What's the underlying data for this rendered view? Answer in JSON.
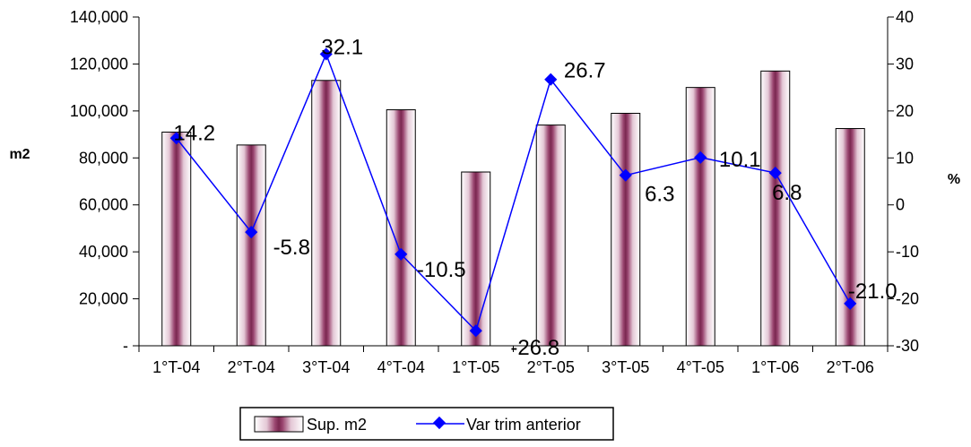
{
  "chart_data": {
    "type": "bar",
    "categories": [
      "1°T-04",
      "2°T-04",
      "3°T-04",
      "4°T-04",
      "1°T-05",
      "2°T-05",
      "3°T-05",
      "4°T-05",
      "1°T-06",
      "2°T-06"
    ],
    "series": [
      {
        "name": "Sup. m2",
        "type": "bar",
        "axis": "left",
        "values": [
          91000,
          85500,
          113000,
          100500,
          74000,
          94000,
          99000,
          110000,
          117000,
          92500
        ]
      },
      {
        "name": "Var trim anterior",
        "type": "line",
        "axis": "right",
        "values": [
          14.2,
          -5.8,
          32.1,
          -10.5,
          -26.8,
          26.7,
          6.3,
          10.1,
          6.8,
          -21.0
        ],
        "labels": [
          "14.2",
          "-5.8",
          "32.1",
          "-10.5",
          "-26.8",
          "26.7",
          "6.3",
          "10.1",
          "6.8",
          "-21.0"
        ]
      }
    ],
    "y_left": {
      "label": "m2",
      "min": 0,
      "max": 140000,
      "ticks": [
        0,
        20000,
        40000,
        60000,
        80000,
        100000,
        120000,
        140000
      ],
      "tick_labels": [
        "-",
        "20,000",
        "40,000",
        "60,000",
        "80,000",
        "100,000",
        "120,000",
        "140,000"
      ]
    },
    "y_right": {
      "label": "%",
      "min": -30,
      "max": 40,
      "ticks": [
        -30,
        -20,
        -10,
        0,
        10,
        20,
        30,
        40
      ],
      "tick_labels": [
        "-30",
        "-20",
        "-10",
        "0",
        "10",
        "20",
        "30",
        "40"
      ]
    },
    "grid": false,
    "legend": "bottom",
    "colors": {
      "bar_dark": "#7a2850",
      "bar_light": "#ffffff",
      "line": "#0000ff"
    }
  }
}
